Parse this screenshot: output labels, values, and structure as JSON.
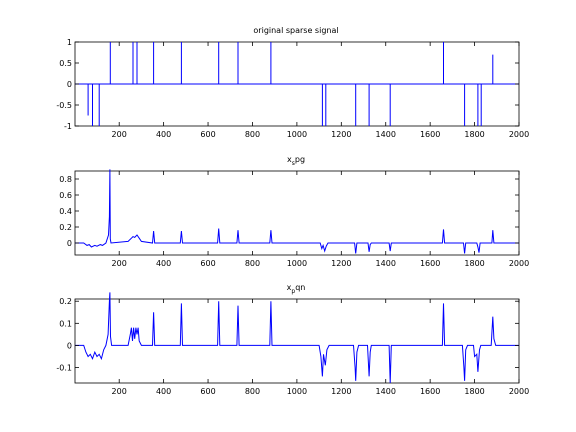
{
  "chart_data": [
    {
      "type": "line",
      "title": "original sparse signal",
      "xlim": [
        1,
        2000
      ],
      "ylim": [
        -1,
        1
      ],
      "xticks": [
        200,
        400,
        600,
        800,
        1000,
        1200,
        1400,
        1600,
        1800,
        2000
      ],
      "yticks": [
        -1,
        -0.5,
        0,
        0.5,
        1
      ],
      "ytick_labels": [
        "-1",
        "-0.5",
        "0",
        "0.5",
        "1"
      ],
      "line_color": "#0000ff",
      "spikes": [
        [
          60,
          -0.75
        ],
        [
          80,
          -1
        ],
        [
          110,
          -1
        ],
        [
          160,
          1
        ],
        [
          262,
          1
        ],
        [
          280,
          1
        ],
        [
          355,
          1
        ],
        [
          480,
          1
        ],
        [
          648,
          1
        ],
        [
          735,
          1
        ],
        [
          883,
          1
        ],
        [
          1115,
          -1
        ],
        [
          1130,
          -1
        ],
        [
          1265,
          -1
        ],
        [
          1325,
          -1
        ],
        [
          1420,
          -1
        ],
        [
          1660,
          1
        ],
        [
          1755,
          -1
        ],
        [
          1815,
          -1
        ],
        [
          1830,
          -1
        ],
        [
          1882,
          0.7
        ]
      ]
    },
    {
      "type": "line",
      "title": "x_spg",
      "title_main": "x",
      "title_sub": "s",
      "title_rest": "pg",
      "xlim": [
        1,
        2000
      ],
      "ylim": [
        -0.15,
        0.9
      ],
      "xticks": [
        200,
        400,
        600,
        800,
        1000,
        1200,
        1400,
        1600,
        1800,
        2000
      ],
      "yticks": [
        0,
        0.2,
        0.4,
        0.6,
        0.8
      ],
      "ytick_labels": [
        "0",
        "0.2",
        "0.4",
        "0.6",
        "0.8"
      ],
      "line_color": "#0000ff",
      "points": [
        [
          1,
          0
        ],
        [
          40,
          0
        ],
        [
          55,
          -0.03
        ],
        [
          65,
          -0.02
        ],
        [
          75,
          -0.05
        ],
        [
          90,
          -0.03
        ],
        [
          100,
          -0.04
        ],
        [
          115,
          -0.02
        ],
        [
          125,
          -0.03
        ],
        [
          140,
          0
        ],
        [
          152,
          0.1
        ],
        [
          156,
          0.33
        ],
        [
          158,
          0.92
        ],
        [
          160,
          0.05
        ],
        [
          163,
          0
        ],
        [
          240,
          0.02
        ],
        [
          255,
          0.06
        ],
        [
          262,
          0.08
        ],
        [
          270,
          0.07
        ],
        [
          280,
          0.1
        ],
        [
          290,
          0.06
        ],
        [
          300,
          0.02
        ],
        [
          350,
          0
        ],
        [
          355,
          0.15
        ],
        [
          360,
          0
        ],
        [
          475,
          0
        ],
        [
          480,
          0.15
        ],
        [
          485,
          0
        ],
        [
          643,
          0
        ],
        [
          648,
          0.18
        ],
        [
          653,
          0
        ],
        [
          730,
          0
        ],
        [
          735,
          0.16
        ],
        [
          740,
          0
        ],
        [
          878,
          0
        ],
        [
          883,
          0.16
        ],
        [
          888,
          0
        ],
        [
          1105,
          0
        ],
        [
          1112,
          -0.07
        ],
        [
          1118,
          -0.03
        ],
        [
          1125,
          -0.1
        ],
        [
          1132,
          -0.04
        ],
        [
          1140,
          0
        ],
        [
          1260,
          0
        ],
        [
          1265,
          -0.13
        ],
        [
          1270,
          0
        ],
        [
          1320,
          0
        ],
        [
          1325,
          -0.11
        ],
        [
          1330,
          -0.02
        ],
        [
          1335,
          0
        ],
        [
          1415,
          0
        ],
        [
          1420,
          -0.1
        ],
        [
          1425,
          0
        ],
        [
          1655,
          0
        ],
        [
          1660,
          0.17
        ],
        [
          1665,
          0
        ],
        [
          1750,
          0
        ],
        [
          1755,
          -0.13
        ],
        [
          1760,
          0
        ],
        [
          1810,
          0
        ],
        [
          1815,
          -0.05
        ],
        [
          1820,
          -0.12
        ],
        [
          1825,
          0
        ],
        [
          1878,
          0
        ],
        [
          1882,
          0.16
        ],
        [
          1887,
          0
        ],
        [
          2000,
          0
        ]
      ]
    },
    {
      "type": "line",
      "title": "x_pqn",
      "title_main": "x",
      "title_sub": "p",
      "title_rest": "qn",
      "xlim": [
        1,
        2000
      ],
      "ylim": [
        -0.17,
        0.21
      ],
      "xticks": [
        200,
        400,
        600,
        800,
        1000,
        1200,
        1400,
        1600,
        1800,
        2000
      ],
      "yticks": [
        -0.1,
        0,
        0.1,
        0.2
      ],
      "ytick_labels": [
        "-0.1",
        "0",
        "0.1",
        "0.2"
      ],
      "line_color": "#0000ff",
      "points": [
        [
          1,
          0
        ],
        [
          40,
          0
        ],
        [
          50,
          -0.03
        ],
        [
          60,
          -0.05
        ],
        [
          70,
          -0.04
        ],
        [
          80,
          -0.06
        ],
        [
          90,
          -0.03
        ],
        [
          100,
          -0.05
        ],
        [
          110,
          -0.04
        ],
        [
          120,
          -0.06
        ],
        [
          130,
          -0.02
        ],
        [
          140,
          0
        ],
        [
          150,
          0.05
        ],
        [
          156,
          0.2
        ],
        [
          158,
          0.24
        ],
        [
          161,
          0.04
        ],
        [
          166,
          0
        ],
        [
          240,
          0
        ],
        [
          250,
          0.05
        ],
        [
          255,
          0.08
        ],
        [
          260,
          0.02
        ],
        [
          265,
          0.08
        ],
        [
          270,
          0.03
        ],
        [
          275,
          0.08
        ],
        [
          280,
          0.05
        ],
        [
          285,
          0.08
        ],
        [
          290,
          0.02
        ],
        [
          300,
          0
        ],
        [
          350,
          0
        ],
        [
          355,
          0.15
        ],
        [
          360,
          0
        ],
        [
          475,
          0
        ],
        [
          480,
          0.19
        ],
        [
          485,
          0
        ],
        [
          643,
          0
        ],
        [
          648,
          0.2
        ],
        [
          653,
          0
        ],
        [
          730,
          0
        ],
        [
          735,
          0.18
        ],
        [
          740,
          0
        ],
        [
          878,
          0
        ],
        [
          883,
          0.2
        ],
        [
          888,
          0
        ],
        [
          1100,
          0
        ],
        [
          1108,
          -0.05
        ],
        [
          1115,
          -0.14
        ],
        [
          1120,
          -0.04
        ],
        [
          1128,
          -0.09
        ],
        [
          1135,
          -0.02
        ],
        [
          1145,
          0
        ],
        [
          1255,
          0
        ],
        [
          1262,
          -0.1
        ],
        [
          1265,
          -0.16
        ],
        [
          1270,
          -0.03
        ],
        [
          1278,
          0
        ],
        [
          1318,
          0
        ],
        [
          1325,
          -0.14
        ],
        [
          1330,
          -0.03
        ],
        [
          1335,
          0
        ],
        [
          1415,
          0
        ],
        [
          1420,
          -0.17
        ],
        [
          1425,
          0
        ],
        [
          1655,
          0
        ],
        [
          1660,
          0.19
        ],
        [
          1665,
          0
        ],
        [
          1745,
          0
        ],
        [
          1752,
          -0.1
        ],
        [
          1755,
          -0.16
        ],
        [
          1760,
          -0.02
        ],
        [
          1768,
          0
        ],
        [
          1795,
          0
        ],
        [
          1800,
          -0.05
        ],
        [
          1810,
          -0.04
        ],
        [
          1815,
          -0.12
        ],
        [
          1822,
          -0.02
        ],
        [
          1828,
          0
        ],
        [
          1875,
          0
        ],
        [
          1882,
          0.13
        ],
        [
          1887,
          0.03
        ],
        [
          1895,
          0
        ],
        [
          2000,
          0
        ]
      ]
    }
  ]
}
